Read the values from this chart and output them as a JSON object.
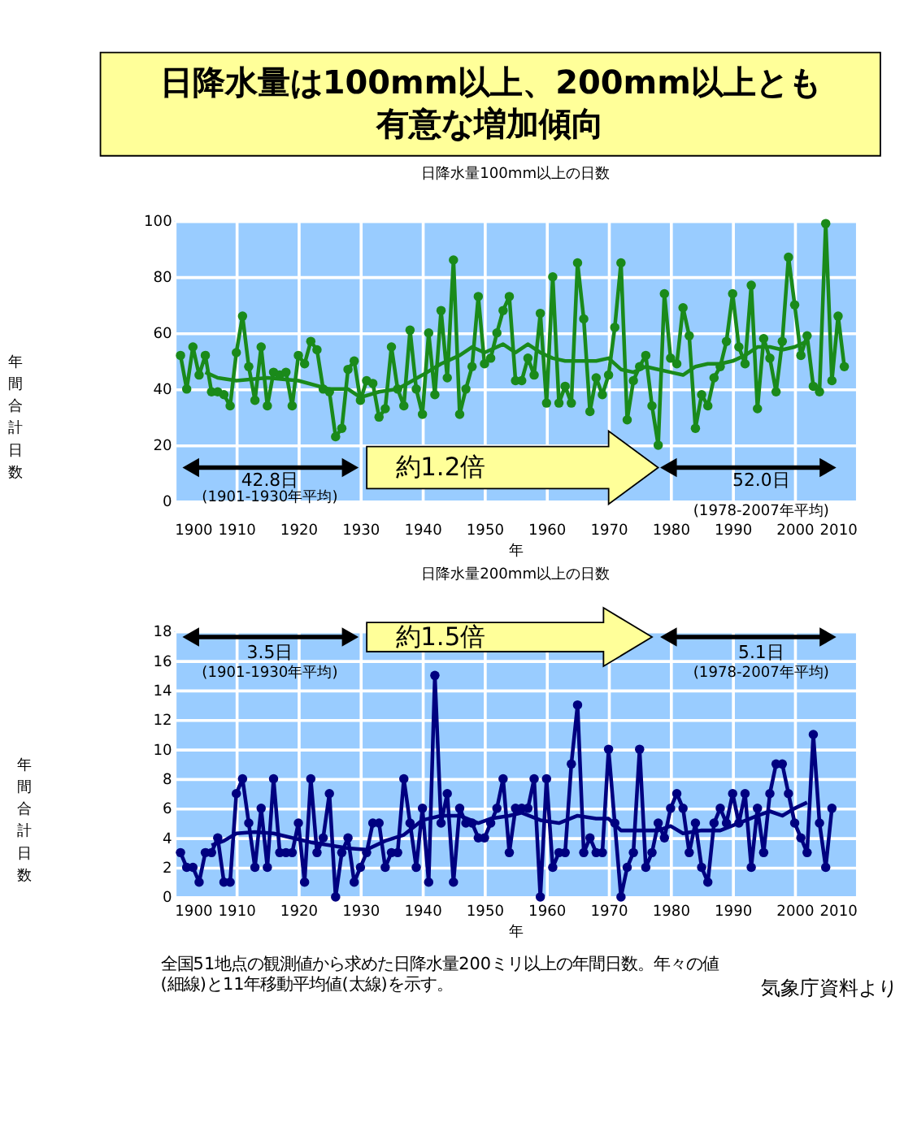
{
  "chart_data": [
    {
      "type": "line",
      "title": "日降水量は100mm以上、200mm以上とも有意な増加傾向",
      "subtitle": "日降水量100mm以上の日数",
      "xlabel": "年",
      "ylabel": "年間合計日数",
      "x": [
        1901,
        1902,
        1903,
        1904,
        1905,
        1906,
        1907,
        1908,
        1909,
        1910,
        1911,
        1912,
        1913,
        1914,
        1915,
        1916,
        1917,
        1918,
        1919,
        1920,
        1921,
        1922,
        1923,
        1924,
        1925,
        1926,
        1927,
        1928,
        1929,
        1930,
        1931,
        1932,
        1933,
        1934,
        1935,
        1936,
        1937,
        1938,
        1939,
        1940,
        1941,
        1942,
        1943,
        1944,
        1945,
        1946,
        1947,
        1948,
        1949,
        1950,
        1951,
        1952,
        1953,
        1954,
        1955,
        1956,
        1957,
        1958,
        1959,
        1960,
        1961,
        1962,
        1963,
        1964,
        1965,
        1966,
        1967,
        1968,
        1969,
        1970,
        1971,
        1972,
        1973,
        1974,
        1975,
        1976,
        1977,
        1978,
        1979,
        1980,
        1981,
        1982,
        1983,
        1984,
        1985,
        1986,
        1987,
        1988,
        1989,
        1990,
        1991,
        1992,
        1993,
        1994,
        1995,
        1996,
        1997,
        1998,
        1999,
        2000,
        2001,
        2002,
        2003,
        2004,
        2005,
        2006,
        2007,
        2008
      ],
      "series": [
        {
          "color": "#1a8a1a",
          "values": [
            52,
            40,
            55,
            45,
            52,
            39,
            39,
            38,
            34,
            53,
            66,
            48,
            36,
            55,
            34,
            46,
            45,
            46,
            34,
            52,
            49,
            57,
            54,
            40,
            39,
            23,
            26,
            47,
            50,
            36,
            43,
            42,
            30,
            33,
            55,
            40,
            34,
            61,
            40,
            31,
            60,
            38,
            68,
            44,
            86,
            31,
            40,
            48,
            73,
            49,
            51,
            60,
            68,
            73,
            43,
            43,
            51,
            45,
            67,
            35,
            80,
            35,
            41,
            35,
            85,
            65,
            32,
            44,
            38,
            45,
            62,
            85,
            29,
            43,
            48,
            52,
            34,
            20,
            74,
            51,
            49,
            69,
            59,
            26,
            38,
            34,
            44,
            48,
            57,
            74,
            55,
            49,
            77,
            33,
            58,
            51,
            39,
            57,
            87,
            70,
            52,
            59,
            41,
            39,
            99,
            43,
            66,
            48
          ]
        },
        {
          "color": "#1a8a1a",
          "marker": "none",
          "x": [
            1905,
            1907,
            1910,
            1915,
            1920,
            1925,
            1928,
            1930,
            1933,
            1936,
            1940,
            1943,
            1946,
            1948,
            1950,
            1953,
            1955,
            1957,
            1959,
            1961,
            1963,
            1965,
            1968,
            1970,
            1972,
            1974,
            1976,
            1978,
            1980,
            1982,
            1984,
            1986,
            1988,
            1990,
            1992,
            1994,
            1996,
            1998,
            2000,
            2002
          ],
          "values": [
            46,
            44,
            43,
            44,
            43,
            40,
            40,
            37,
            39,
            40,
            45,
            49,
            52,
            55,
            53,
            56,
            53,
            56,
            53,
            51,
            50,
            50,
            50,
            51,
            47,
            46,
            48,
            47,
            46,
            45,
            48,
            49,
            49,
            50,
            52,
            55,
            55,
            54,
            55,
            57
          ]
        }
      ],
      "xlim": [
        1900,
        2010
      ],
      "xticks": [
        1900,
        1910,
        1920,
        1930,
        1940,
        1950,
        1960,
        1970,
        1980,
        1990,
        2000,
        2010
      ],
      "ylim": [
        0,
        100
      ],
      "yticks": [
        0,
        20,
        40,
        60,
        80,
        100
      ],
      "grid": true,
      "marker": "circle",
      "annotations": [
        "42.8日",
        "(1901-1930年平均)",
        "約1.2倍",
        "52.0日",
        "(1978-2007年平均)"
      ]
    },
    {
      "type": "line",
      "title": "日降水量200mm以上の日数",
      "xlabel": "年",
      "ylabel": "年間合計日数",
      "x": [
        1901,
        1902,
        1903,
        1904,
        1905,
        1906,
        1907,
        1908,
        1909,
        1910,
        1911,
        1912,
        1913,
        1914,
        1915,
        1916,
        1917,
        1918,
        1919,
        1920,
        1921,
        1922,
        1923,
        1924,
        1925,
        1926,
        1927,
        1928,
        1929,
        1930,
        1931,
        1932,
        1933,
        1934,
        1935,
        1936,
        1937,
        1938,
        1939,
        1940,
        1941,
        1942,
        1943,
        1944,
        1945,
        1946,
        1947,
        1948,
        1949,
        1950,
        1951,
        1952,
        1953,
        1954,
        1955,
        1956,
        1957,
        1958,
        1959,
        1960,
        1961,
        1962,
        1963,
        1964,
        1965,
        1966,
        1967,
        1968,
        1969,
        1970,
        1971,
        1972,
        1973,
        1974,
        1975,
        1976,
        1977,
        1978,
        1979,
        1980,
        1981,
        1982,
        1983,
        1984,
        1985,
        1986,
        1987,
        1988,
        1989,
        1990,
        1991,
        1992,
        1993,
        1994,
        1995,
        1996,
        1997,
        1998,
        1999,
        2000,
        2001,
        2002,
        2003,
        2004,
        2005,
        2006
      ],
      "series": [
        {
          "color": "#000080",
          "values": [
            3,
            2,
            2,
            1,
            3,
            3,
            4,
            1,
            1,
            7,
            8,
            5,
            2,
            6,
            2,
            8,
            3,
            3,
            3,
            5,
            1,
            8,
            3,
            4,
            7,
            0,
            3,
            4,
            1,
            2,
            3,
            5,
            5,
            2,
            3,
            3,
            8,
            5,
            2,
            6,
            1,
            15,
            5,
            7,
            1,
            6,
            5,
            5,
            4,
            4,
            5,
            6,
            8,
            3,
            6,
            6,
            6,
            8,
            0,
            8,
            2,
            3,
            3,
            9,
            13,
            3,
            4,
            3,
            3,
            10,
            5,
            0,
            2,
            3,
            10,
            2,
            3,
            5,
            4,
            6,
            7,
            6,
            3,
            5,
            2,
            1,
            5,
            6,
            5,
            7,
            5,
            7,
            2,
            6,
            3,
            7,
            9,
            9,
            7,
            5,
            4,
            3,
            11,
            5,
            2,
            6
          ]
        },
        {
          "color": "#000080",
          "marker": "none",
          "x": [
            1906,
            1908,
            1910,
            1913,
            1916,
            1919,
            1922,
            1925,
            1928,
            1931,
            1934,
            1937,
            1940,
            1943,
            1946,
            1949,
            1951,
            1954,
            1956,
            1959,
            1962,
            1965,
            1968,
            1970,
            1972,
            1975,
            1978,
            1980,
            1982,
            1985,
            1988,
            1991,
            1994,
            1996,
            1998,
            2000,
            2002
          ],
          "values": [
            3.5,
            3.8,
            4.3,
            4.4,
            4.3,
            4.0,
            3.7,
            3.5,
            3.3,
            3.2,
            3.8,
            4.2,
            5.2,
            5.5,
            5.5,
            5.0,
            5.3,
            5.5,
            5.7,
            5.2,
            5.0,
            5.5,
            5.3,
            5.3,
            4.5,
            4.5,
            4.5,
            4.8,
            4.3,
            4.5,
            4.5,
            5.0,
            5.5,
            5.8,
            5.5,
            6.0,
            6.4
          ]
        }
      ],
      "xlim": [
        1900,
        2010
      ],
      "xticks": [
        1900,
        1910,
        1920,
        1930,
        1940,
        1950,
        1960,
        1970,
        1980,
        1990,
        2000,
        2010
      ],
      "ylim": [
        0,
        18
      ],
      "yticks": [
        0,
        2,
        4,
        6,
        8,
        10,
        12,
        14,
        16,
        18
      ],
      "grid": true,
      "marker": "circle",
      "annotations": [
        "3.5日",
        "(1901-1930年平均)",
        "約1.5倍",
        "5.1日",
        "(1978-2007年平均)",
        "全国51地点の観測値から求めた日降水量200ミリ以上の年間日数。年々の値(細線)と11年移動平均値(太線)を示す。",
        "気象庁資料より"
      ]
    }
  ]
}
